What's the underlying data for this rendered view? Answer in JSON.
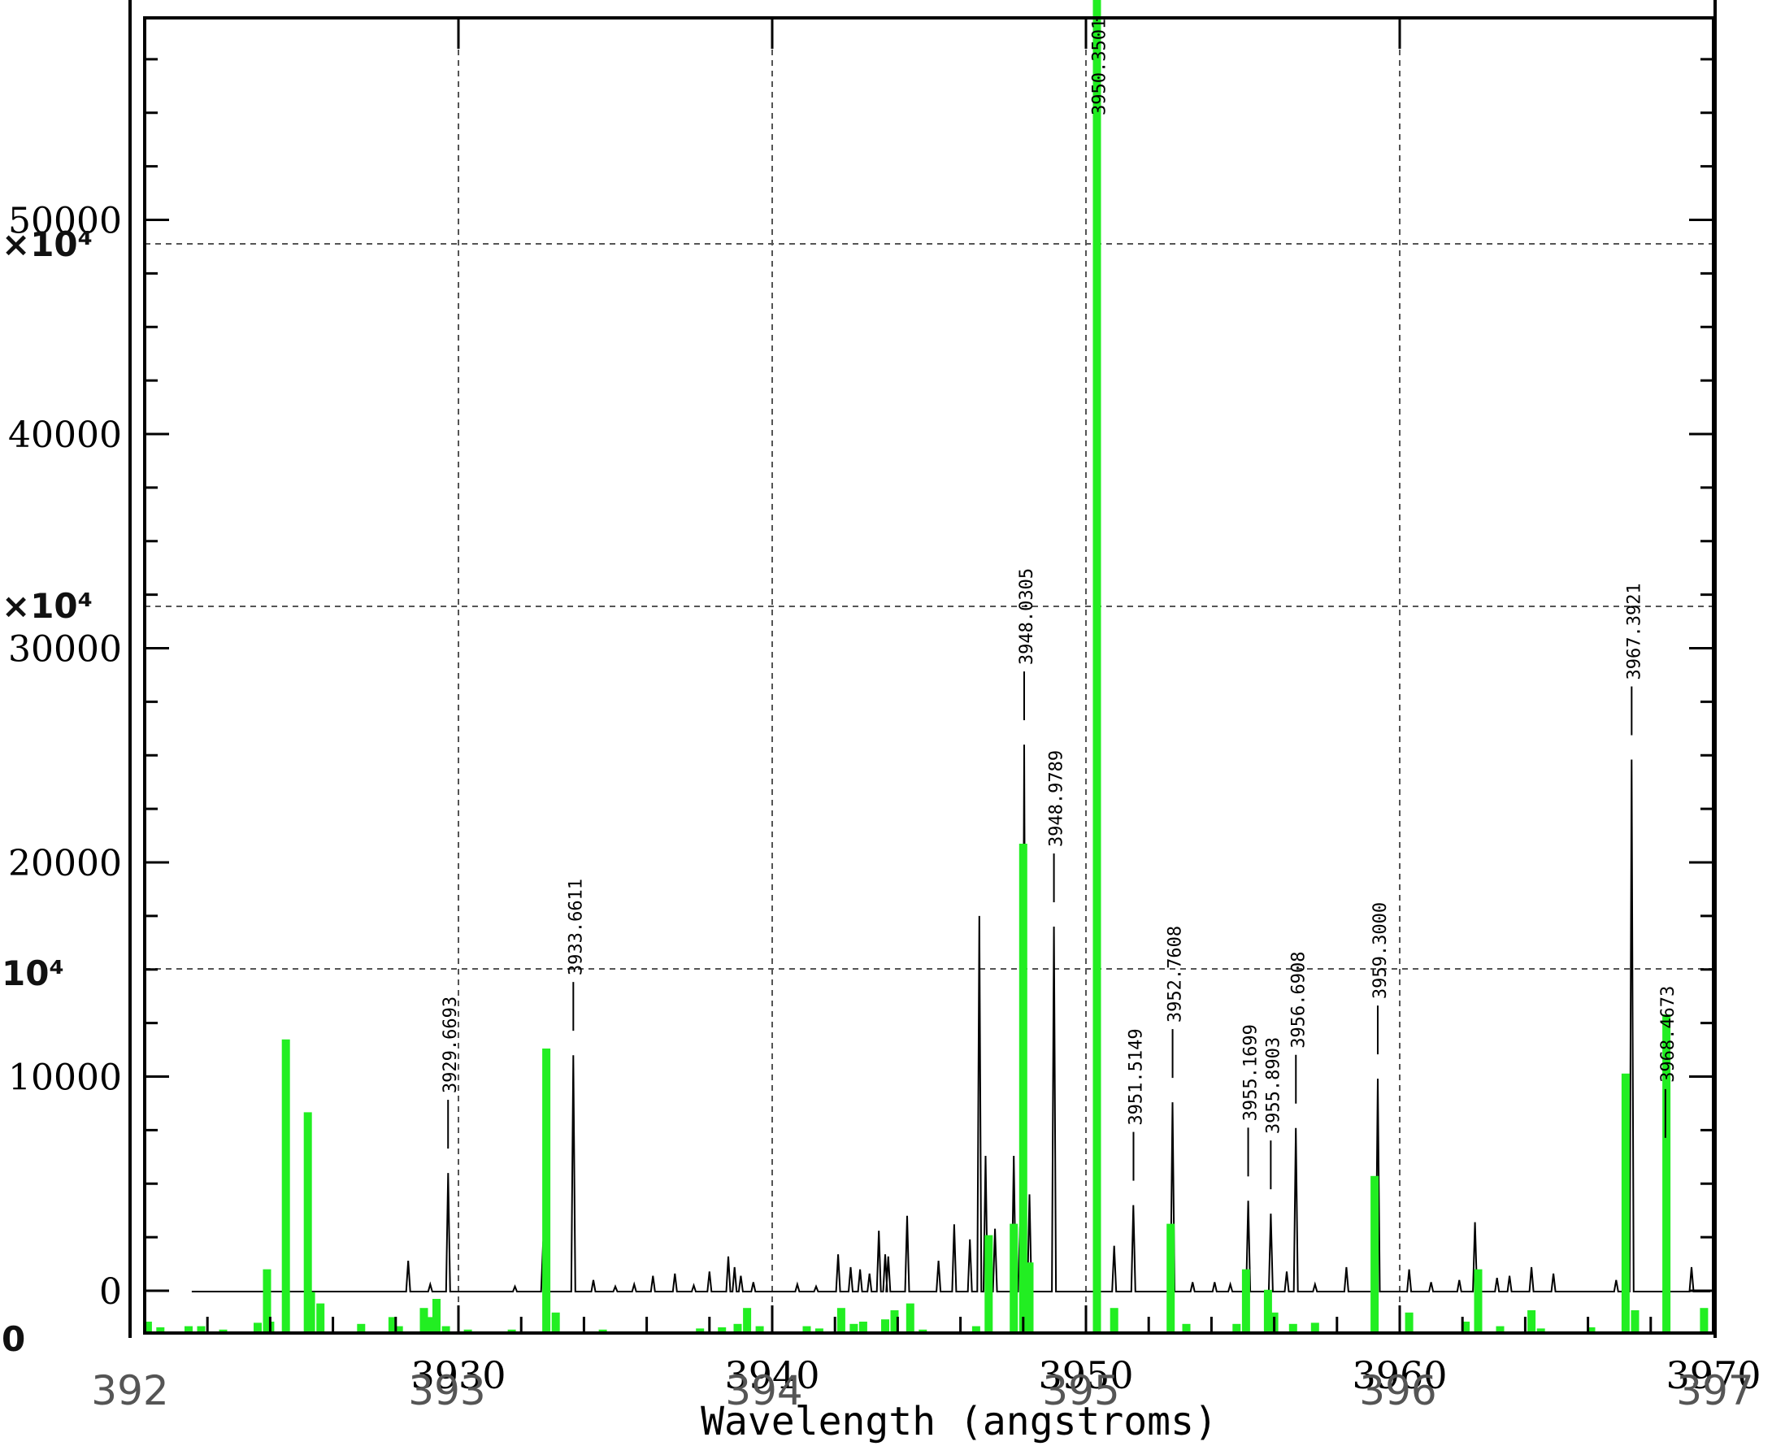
{
  "chart_data": {
    "type": "line",
    "xlabel": "Wavelength (angstroms)",
    "ylabel": "",
    "grid": true,
    "colors": {
      "spectrum": "#000000",
      "reference": "#22ee22",
      "axis": "#000000",
      "grid": "#555555"
    },
    "x_axis": {
      "range": [
        3920,
        3970
      ],
      "ticks": [
        3930,
        3940,
        3950,
        3960,
        3970
      ],
      "tick_labels": [
        "3930",
        "3940",
        "3950",
        "3960",
        "3970"
      ]
    },
    "x_axis_secondary": {
      "range": [
        392,
        397
      ],
      "tick_labels": [
        "392",
        "393",
        "394",
        "395",
        "396",
        "397"
      ]
    },
    "y_axis": {
      "range": [
        -2000,
        61000
      ],
      "ticks": [
        0,
        10000,
        20000,
        30000,
        40000,
        50000
      ],
      "tick_labels": [
        "0",
        "10000",
        "20000",
        "30000",
        "40000",
        "50000"
      ]
    },
    "y_axis_secondary": {
      "range": [
        0,
        60000
      ],
      "ticks": [
        0,
        15000,
        33000,
        50000
      ],
      "tick_labels": [
        "0",
        "10⁴",
        "×10⁴",
        "×10⁴"
      ]
    },
    "line_labels": [
      {
        "wavelength": 3929.6693,
        "text": "3929.6693",
        "peak": 5500
      },
      {
        "wavelength": 3933.6611,
        "text": "3933.6611",
        "peak": 11000
      },
      {
        "wavelength": 3948.0305,
        "text": "3948.0305",
        "peak": 25500
      },
      {
        "wavelength": 3948.9789,
        "text": "3948.9789",
        "peak": 17000
      },
      {
        "wavelength": 3950.3501,
        "text": "3950.3501",
        "peak": 61000
      },
      {
        "wavelength": 3951.5149,
        "text": "3951.5149",
        "peak": 4000
      },
      {
        "wavelength": 3952.7608,
        "text": "3952.7608",
        "peak": 8800
      },
      {
        "wavelength": 3955.1699,
        "text": "3955.1699",
        "peak": 4200
      },
      {
        "wavelength": 3955.8903,
        "text": "3955.8903",
        "peak": 3600
      },
      {
        "wavelength": 3956.6908,
        "text": "3956.6908",
        "peak": 7600
      },
      {
        "wavelength": 3959.3,
        "text": "3959.3000",
        "peak": 9900
      },
      {
        "wavelength": 3967.3921,
        "text": "3967.3921",
        "peak": 24800
      },
      {
        "wavelength": 3968.4673,
        "text": "3968.4673",
        "peak": 6000
      }
    ],
    "series": [
      {
        "kind": "spectrum",
        "peaks": [
          [
            3928.4,
            1400
          ],
          [
            3929.1,
            300
          ],
          [
            3929.67,
            5500
          ],
          [
            3931.8,
            200
          ],
          [
            3932.7,
            2300
          ],
          [
            3933.66,
            11000
          ],
          [
            3934.3,
            500
          ],
          [
            3935.0,
            200
          ],
          [
            3935.6,
            300
          ],
          [
            3936.2,
            700
          ],
          [
            3936.9,
            800
          ],
          [
            3937.5,
            250
          ],
          [
            3938.0,
            900
          ],
          [
            3938.6,
            1600
          ],
          [
            3938.8,
            1100
          ],
          [
            3939.0,
            700
          ],
          [
            3939.4,
            400
          ],
          [
            3940.8,
            300
          ],
          [
            3941.4,
            200
          ],
          [
            3942.1,
            1700
          ],
          [
            3942.5,
            1100
          ],
          [
            3942.8,
            1000
          ],
          [
            3943.1,
            800
          ],
          [
            3943.4,
            2800
          ],
          [
            3943.6,
            1700
          ],
          [
            3943.7,
            1600
          ],
          [
            3944.3,
            3500
          ],
          [
            3945.3,
            1400
          ],
          [
            3945.8,
            3100
          ],
          [
            3946.3,
            2400
          ],
          [
            3946.6,
            17500
          ],
          [
            3946.8,
            6300
          ],
          [
            3947.1,
            2900
          ],
          [
            3947.7,
            6300
          ],
          [
            3947.9,
            3000
          ],
          [
            3948.03,
            25500
          ],
          [
            3948.2,
            4500
          ],
          [
            3948.98,
            17000
          ],
          [
            3950.35,
            61000
          ],
          [
            3950.9,
            2100
          ],
          [
            3951.51,
            4000
          ],
          [
            3952.76,
            8800
          ],
          [
            3953.4,
            400
          ],
          [
            3954.1,
            400
          ],
          [
            3954.6,
            300
          ],
          [
            3955.17,
            4200
          ],
          [
            3955.89,
            3600
          ],
          [
            3956.4,
            900
          ],
          [
            3956.69,
            7600
          ],
          [
            3957.3,
            300
          ],
          [
            3958.3,
            1100
          ],
          [
            3959.3,
            9900
          ],
          [
            3960.3,
            1000
          ],
          [
            3961.0,
            400
          ],
          [
            3961.9,
            500
          ],
          [
            3962.4,
            3200
          ],
          [
            3963.1,
            600
          ],
          [
            3963.5,
            700
          ],
          [
            3964.2,
            1100
          ],
          [
            3964.9,
            800
          ],
          [
            3966.9,
            500
          ],
          [
            3967.39,
            24800
          ],
          [
            3968.47,
            6000
          ],
          [
            3969.3,
            1100
          ]
        ]
      },
      {
        "kind": "reference",
        "bars": [
          [
            3920.1,
            500
          ],
          [
            3920.5,
            250
          ],
          [
            3921.4,
            300
          ],
          [
            3921.8,
            300
          ],
          [
            3922.5,
            150
          ],
          [
            3923.6,
            450
          ],
          [
            3923.9,
            2800
          ],
          [
            3924.0,
            500
          ],
          [
            3924.5,
            12900
          ],
          [
            3925.2,
            9700
          ],
          [
            3925.3,
            1800
          ],
          [
            3925.6,
            1300
          ],
          [
            3926.9,
            400
          ],
          [
            3927.9,
            700
          ],
          [
            3928.1,
            300
          ],
          [
            3928.9,
            1100
          ],
          [
            3929.1,
            700
          ],
          [
            3929.3,
            1500
          ],
          [
            3929.6,
            300
          ],
          [
            3930.3,
            150
          ],
          [
            3931.7,
            150
          ],
          [
            3932.8,
            12500
          ],
          [
            3933.1,
            900
          ],
          [
            3934.6,
            150
          ],
          [
            3937.7,
            200
          ],
          [
            3938.4,
            250
          ],
          [
            3938.9,
            400
          ],
          [
            3939.2,
            1100
          ],
          [
            3939.6,
            300
          ],
          [
            3941.1,
            300
          ],
          [
            3941.5,
            200
          ],
          [
            3942.2,
            1100
          ],
          [
            3942.6,
            400
          ],
          [
            3942.9,
            500
          ],
          [
            3943.6,
            600
          ],
          [
            3943.9,
            1000
          ],
          [
            3944.4,
            1300
          ],
          [
            3944.8,
            150
          ],
          [
            3946.5,
            300
          ],
          [
            3946.9,
            4300
          ],
          [
            3947.7,
            4800
          ],
          [
            3948.0,
            21500
          ],
          [
            3948.2,
            3100
          ],
          [
            3950.35,
            60000
          ],
          [
            3950.9,
            1100
          ],
          [
            3952.7,
            4800
          ],
          [
            3953.2,
            400
          ],
          [
            3954.8,
            400
          ],
          [
            3955.1,
            2800
          ],
          [
            3955.8,
            1900
          ],
          [
            3956.0,
            900
          ],
          [
            3956.6,
            400
          ],
          [
            3957.3,
            450
          ],
          [
            3959.2,
            6900
          ],
          [
            3960.3,
            900
          ],
          [
            3962.1,
            500
          ],
          [
            3962.5,
            2800
          ],
          [
            3963.2,
            300
          ],
          [
            3964.2,
            1000
          ],
          [
            3964.5,
            200
          ],
          [
            3966.1,
            250
          ],
          [
            3967.2,
            11400
          ],
          [
            3967.5,
            1000
          ],
          [
            3968.5,
            14000
          ],
          [
            3969.7,
            1100
          ]
        ]
      }
    ]
  }
}
